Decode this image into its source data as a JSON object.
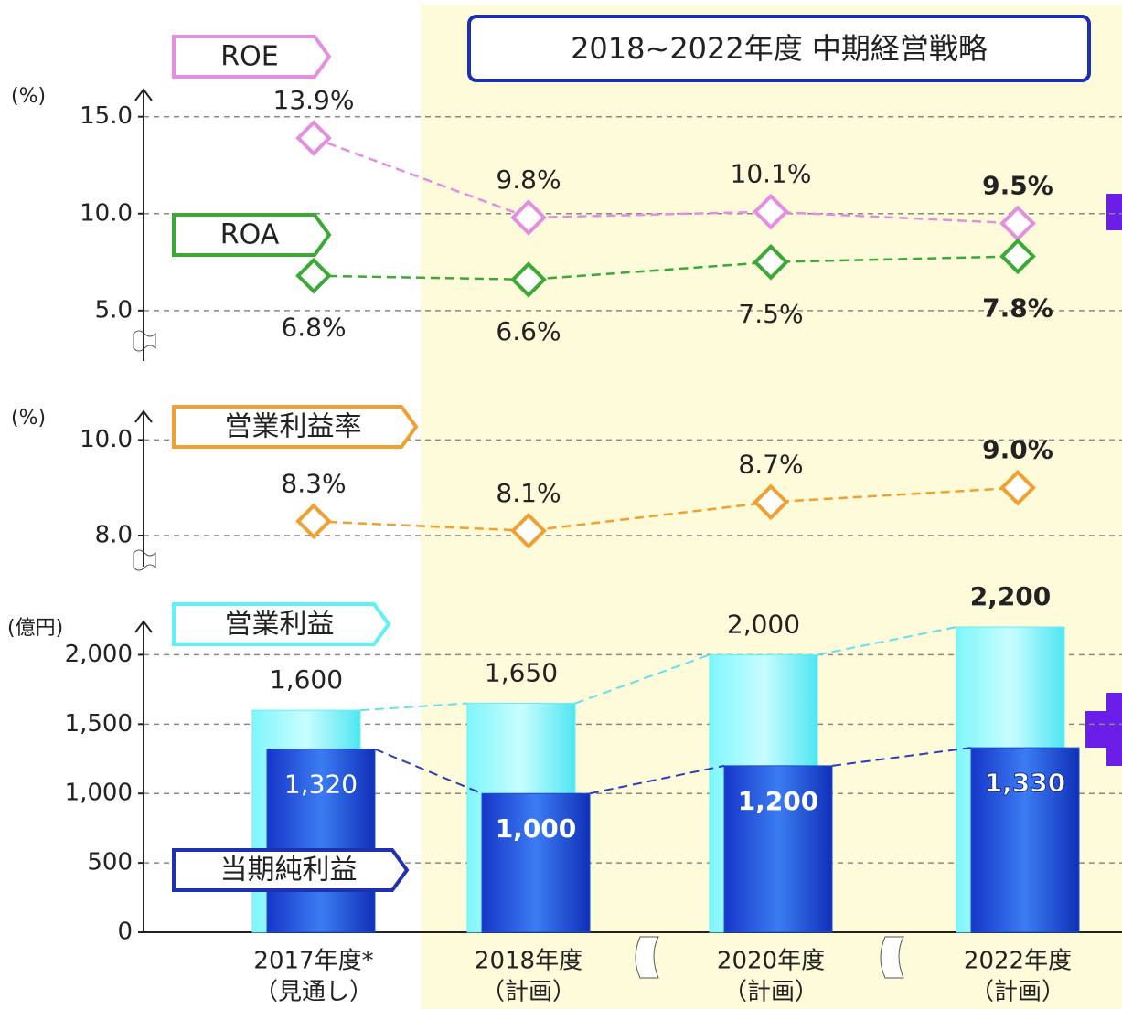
{
  "title": "2018~2022年度 中期経営戦略",
  "chart_data": [
    {
      "type": "line",
      "unit": "(%)",
      "series": [
        {
          "name": "ROE",
          "color": "#e58de0",
          "values": [
            13.9,
            9.8,
            10.1,
            9.5
          ],
          "value_labels": [
            "13.9%",
            "9.8%",
            "10.1%",
            "9.5%"
          ]
        },
        {
          "name": "ROA",
          "color": "#3aaa35",
          "values": [
            6.8,
            6.6,
            7.5,
            7.8
          ],
          "value_labels": [
            "6.8%",
            "6.6%",
            "7.5%",
            "7.8%"
          ]
        }
      ],
      "ylim": [
        2.4,
        16.4
      ],
      "yticks": [
        {
          "value": 5,
          "label": "5.0"
        },
        {
          "value": 10,
          "label": "10.0"
        },
        {
          "value": 15,
          "label": "15.0"
        }
      ],
      "grid": true
    },
    {
      "type": "line",
      "unit": "(%)",
      "series": [
        {
          "name": "営業利益率",
          "color": "#f0a030",
          "values": [
            8.3,
            8.1,
            8.7,
            9.0
          ],
          "value_labels": [
            "8.3%",
            "8.1%",
            "8.7%",
            "9.0%"
          ]
        }
      ],
      "ylim": [
        7.35,
        10.6
      ],
      "yticks": [
        {
          "value": 8,
          "label": "8.0"
        },
        {
          "value": 10,
          "label": "10.0"
        }
      ],
      "grid": true
    },
    {
      "type": "bar",
      "unit": "(億円)",
      "categories": [
        "2017年度*",
        "2018年度",
        "2020年度",
        "2022年度"
      ],
      "category_notes": [
        "（見通し）",
        "（計画）",
        "（計画）",
        "（計画）"
      ],
      "series": [
        {
          "name": "営業利益",
          "color": "#60f0f8",
          "values": [
            1600,
            1650,
            2000,
            2200
          ],
          "value_labels": [
            "1,600",
            "1,650",
            "2,000",
            "2,200"
          ]
        },
        {
          "name": "当期純利益",
          "color": "#1a4fd8",
          "values": [
            1320,
            1000,
            1200,
            1330
          ],
          "value_labels": [
            "1,320",
            "1,000",
            "1,200",
            "1,330"
          ]
        }
      ],
      "ylim": [
        0,
        2240
      ],
      "yticks": [
        0,
        {
          "value": 500,
          "label": "500"
        },
        {
          "value": 1000,
          "label": "1,000"
        },
        {
          "value": 1500,
          "label": "1,500"
        },
        {
          "value": 2000,
          "label": "2,000"
        }
      ],
      "grid": true
    }
  ]
}
